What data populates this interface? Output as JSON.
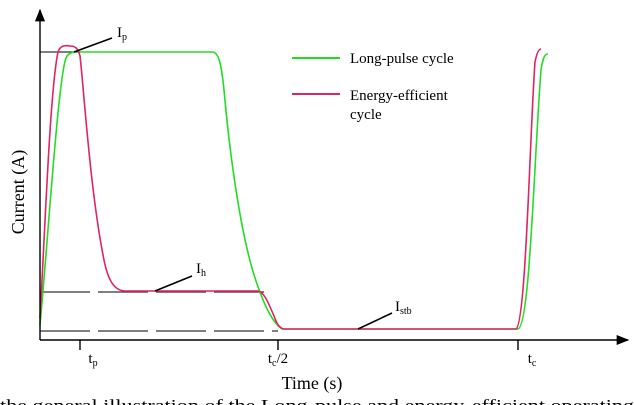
{
  "chart_data": {
    "type": "line",
    "xlabel": "Time (s)",
    "ylabel": "Current (A)",
    "x_ticks": [
      {
        "main": "t",
        "sub": "p"
      },
      {
        "main": "t",
        "sub": "c",
        "suffix": "/2"
      },
      {
        "main": "t",
        "sub": "c"
      }
    ],
    "legend_position": "top-right",
    "series": [
      {
        "name": "Long-pulse cycle",
        "color": "#22dd22"
      },
      {
        "name": "Energy-efficient cycle",
        "name_lines": [
          "Energy-efficient",
          "cycle"
        ],
        "color": "#e0245e"
      }
    ],
    "annotations": [
      {
        "main": "I",
        "sub": "p"
      },
      {
        "main": "I",
        "sub": "h"
      },
      {
        "main": "I",
        "sub": "stb"
      }
    ]
  },
  "caption": "the general illustration of the Long-pulse and energy-efficient operating"
}
